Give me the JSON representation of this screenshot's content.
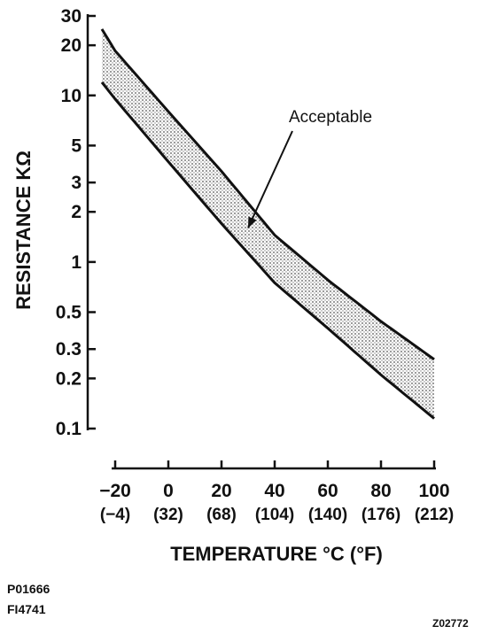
{
  "chart_data": {
    "type": "area",
    "title": "",
    "ylabel": "RESISTANCE KΩ",
    "xlabel": "TEMPERATURE °C (°F)",
    "y_scale": "log",
    "ylim": [
      0.1,
      30
    ],
    "xlim": [
      -25,
      100
    ],
    "y_ticks": [
      {
        "value": 30,
        "label": "30"
      },
      {
        "value": 20,
        "label": "20"
      },
      {
        "value": 10,
        "label": "10"
      },
      {
        "value": 5,
        "label": "5"
      },
      {
        "value": 3,
        "label": "3"
      },
      {
        "value": 2,
        "label": "2"
      },
      {
        "value": 1,
        "label": "1"
      },
      {
        "value": 0.5,
        "label": "0.5"
      },
      {
        "value": 0.3,
        "label": "0.3"
      },
      {
        "value": 0.2,
        "label": "0.2"
      },
      {
        "value": 0.1,
        "label": "0.1"
      }
    ],
    "x_ticks": [
      {
        "value": -20,
        "label": "−20",
        "f_label": "(−4)"
      },
      {
        "value": 0,
        "label": "0",
        "f_label": "(32)"
      },
      {
        "value": 20,
        "label": "20",
        "f_label": "(68)"
      },
      {
        "value": 40,
        "label": "40",
        "f_label": "(104)"
      },
      {
        "value": 60,
        "label": "60",
        "f_label": "(140)"
      },
      {
        "value": 80,
        "label": "80",
        "f_label": "(176)"
      },
      {
        "value": 100,
        "label": "100",
        "f_label": "(212)"
      }
    ],
    "x": [
      -25,
      -20,
      0,
      20,
      40,
      60,
      80,
      100
    ],
    "series": [
      {
        "values": [
          25,
          18.5,
          8.0,
          3.5,
          1.45,
          0.78,
          0.44,
          0.26
        ]
      },
      {
        "values": [
          12,
          9.5,
          4.0,
          1.7,
          0.75,
          0.4,
          0.21,
          0.115
        ]
      }
    ],
    "band_label": "Acceptable",
    "annotation_target": {
      "x": 30,
      "y": 1.6
    },
    "grid": false,
    "line_color": "#111111",
    "band_color": "#9a9a9a"
  },
  "footer": {
    "code_1": "P01666",
    "code_2": "FI4741",
    "code_3": "Z02772"
  }
}
